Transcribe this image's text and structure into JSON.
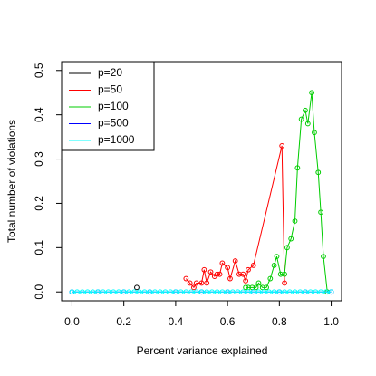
{
  "chart_data": {
    "type": "line",
    "xlabel": "Percent variance explained",
    "ylabel": "Total number of violations",
    "xlim": [
      -0.04,
      1.04
    ],
    "ylim": [
      -0.02,
      0.52
    ],
    "xticks": [
      {
        "value": 0,
        "label": "0.0"
      },
      {
        "value": 0.2,
        "label": "0.2"
      },
      {
        "value": 0.4,
        "label": "0.4"
      },
      {
        "value": 0.6,
        "label": "0.6"
      },
      {
        "value": 0.8,
        "label": "0.8"
      },
      {
        "value": 1,
        "label": "1.0"
      }
    ],
    "yticks": [
      {
        "value": 0,
        "label": "0.0"
      },
      {
        "value": 0.1,
        "label": "0.1"
      },
      {
        "value": 0.2,
        "label": "0.2"
      },
      {
        "value": 0.3,
        "label": "0.3"
      },
      {
        "value": 0.4,
        "label": "0.4"
      },
      {
        "value": 0.5,
        "label": "0.5"
      }
    ],
    "legend": "top-left",
    "series": [
      {
        "name": "p=20",
        "color": "#000000",
        "x": [
          0.25
        ],
        "values": [
          0.01
        ]
      },
      {
        "name": "p=50",
        "color": "#ff0000",
        "x": [
          0.44,
          0.455,
          0.47,
          0.48,
          0.5,
          0.51,
          0.52,
          0.535,
          0.55,
          0.56,
          0.57,
          0.58,
          0.6,
          0.61,
          0.63,
          0.645,
          0.66,
          0.67,
          0.68,
          0.7,
          0.81,
          0.82
        ],
        "values": [
          0.03,
          0.02,
          0.01,
          0.02,
          0.02,
          0.05,
          0.02,
          0.045,
          0.035,
          0.04,
          0.04,
          0.065,
          0.055,
          0.03,
          0.07,
          0.04,
          0.04,
          0.025,
          0.05,
          0.06,
          0.33,
          0.02
        ]
      },
      {
        "name": "p=100",
        "color": "#00cd00",
        "x": [
          0.67,
          0.68,
          0.695,
          0.71,
          0.72,
          0.735,
          0.75,
          0.765,
          0.78,
          0.79,
          0.805,
          0.82,
          0.83,
          0.845,
          0.86,
          0.87,
          0.885,
          0.9,
          0.91,
          0.925,
          0.935,
          0.95,
          0.96,
          0.97,
          0.985
        ],
        "values": [
          0.01,
          0.01,
          0.01,
          0.01,
          0.02,
          0.01,
          0.01,
          0.03,
          0.06,
          0.08,
          0.04,
          0.04,
          0.1,
          0.12,
          0.16,
          0.28,
          0.39,
          0.41,
          0.38,
          0.45,
          0.36,
          0.27,
          0.18,
          0.08,
          0
        ]
      },
      {
        "name": "p=500",
        "color": "#0000ff",
        "x": [
          0,
          0.1,
          0.2,
          0.3,
          0.4,
          0.5,
          0.6,
          0.7,
          0.8,
          0.9,
          1
        ],
        "values": [
          0,
          0,
          0,
          0,
          0,
          0,
          0,
          0,
          0,
          0,
          0
        ]
      },
      {
        "name": "p=1000",
        "color": "#00ffff",
        "x": [
          0,
          0.02,
          0.04,
          0.06,
          0.08,
          0.1,
          0.12,
          0.14,
          0.16,
          0.18,
          0.2,
          0.22,
          0.24,
          0.26,
          0.28,
          0.3,
          0.32,
          0.34,
          0.36,
          0.38,
          0.4,
          0.42,
          0.44,
          0.46,
          0.48,
          0.5,
          0.52,
          0.54,
          0.56,
          0.58,
          0.6,
          0.62,
          0.64,
          0.66,
          0.68,
          0.7,
          0.72,
          0.74,
          0.76,
          0.78,
          0.8,
          0.82,
          0.84,
          0.86,
          0.88,
          0.9,
          0.92,
          0.94,
          0.96,
          0.98,
          1
        ],
        "values": [
          0,
          0,
          0,
          0,
          0,
          0,
          0,
          0,
          0,
          0,
          0,
          0,
          0,
          0,
          0,
          0,
          0,
          0,
          0,
          0,
          0,
          0,
          0,
          0,
          0,
          0,
          0,
          0,
          0,
          0,
          0,
          0,
          0,
          0,
          0,
          0,
          0,
          0,
          0,
          0,
          0,
          0,
          0,
          0,
          0,
          0,
          0,
          0,
          0,
          0,
          0
        ]
      }
    ]
  }
}
